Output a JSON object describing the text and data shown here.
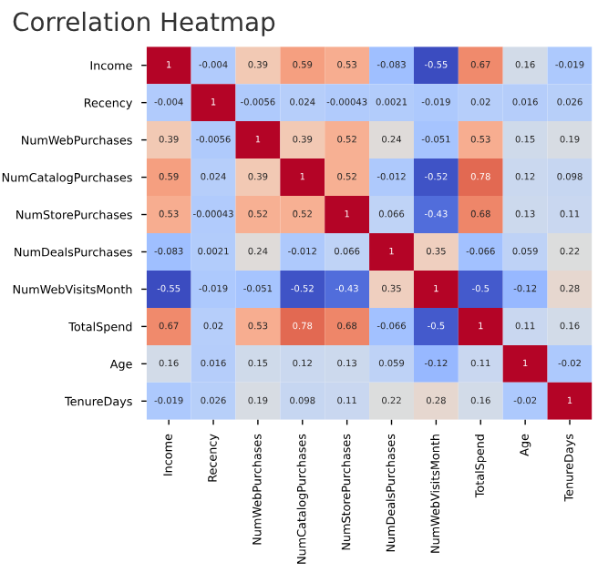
{
  "chart_data": {
    "type": "heatmap",
    "title": "Correlation Heatmap",
    "categories": [
      "Income",
      "Recency",
      "NumWebPurchases",
      "NumCatalogPurchases",
      "NumStorePurchases",
      "NumDealsPurchases",
      "NumWebVisitsMonth",
      "TotalSpend",
      "Age",
      "TenureDays"
    ],
    "y_categories": [
      "Income",
      "Recency",
      "NumWebPurchases",
      "NumCatalogPurchases",
      "NumStorePurchases",
      "NumDealsPurchases",
      "NumWebVisitsMonth",
      "TotalSpend",
      "Age",
      "TenureDays"
    ],
    "cells": [
      [
        1,
        -0.004,
        0.39,
        0.59,
        0.53,
        -0.083,
        -0.55,
        0.67,
        0.16,
        -0.019
      ],
      [
        -0.004,
        1,
        -0.0056,
        0.024,
        -0.00043,
        0.0021,
        -0.019,
        0.02,
        0.016,
        0.026
      ],
      [
        0.39,
        -0.0056,
        1,
        0.39,
        0.52,
        0.24,
        -0.051,
        0.53,
        0.15,
        0.19
      ],
      [
        0.59,
        0.024,
        0.39,
        1,
        0.52,
        -0.012,
        -0.52,
        0.78,
        0.12,
        0.098
      ],
      [
        0.53,
        -0.00043,
        0.52,
        0.52,
        1,
        0.066,
        -0.43,
        0.68,
        0.13,
        0.11
      ],
      [
        -0.083,
        0.0021,
        0.24,
        -0.012,
        0.066,
        1,
        0.35,
        -0.066,
        0.059,
        0.22
      ],
      [
        -0.55,
        -0.019,
        -0.051,
        -0.52,
        -0.43,
        0.35,
        1,
        -0.5,
        -0.12,
        0.28
      ],
      [
        0.67,
        0.02,
        0.53,
        0.78,
        0.68,
        -0.066,
        -0.5,
        1,
        0.11,
        0.16
      ],
      [
        0.16,
        0.016,
        0.15,
        0.12,
        0.13,
        0.059,
        -0.12,
        0.11,
        1,
        -0.02
      ],
      [
        -0.019,
        0.026,
        0.19,
        0.098,
        0.11,
        0.22,
        0.28,
        0.16,
        -0.02,
        1
      ]
    ],
    "data_labels": true
  }
}
